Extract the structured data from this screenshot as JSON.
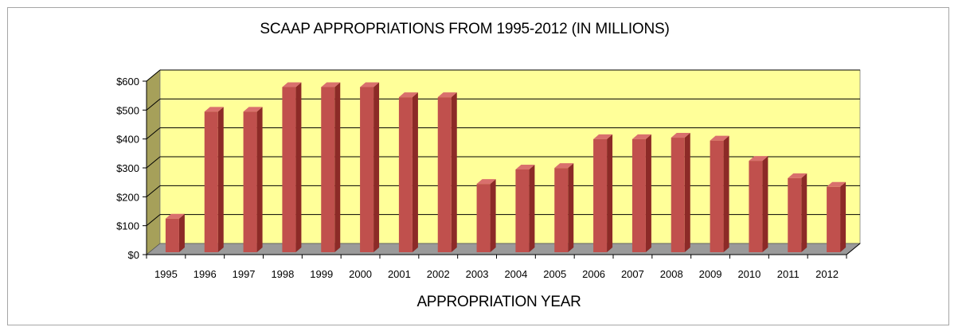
{
  "chart_data": {
    "type": "bar",
    "title": "SCAAP APPROPRIATIONS FROM 1995-2012 (IN MILLIONS)",
    "xlabel": "APPROPRIATION YEAR",
    "ylabel": "",
    "categories": [
      "1995",
      "1996",
      "1997",
      "1998",
      "1999",
      "2000",
      "2001",
      "2002",
      "2003",
      "2004",
      "2005",
      "2006",
      "2007",
      "2008",
      "2009",
      "2010",
      "2011",
      "2012"
    ],
    "values": [
      130,
      500,
      500,
      585,
      585,
      585,
      550,
      550,
      250,
      300,
      305,
      405,
      405,
      410,
      400,
      330,
      270,
      240
    ],
    "ylim": [
      0,
      600
    ],
    "yticks": [
      0,
      100,
      200,
      300,
      400,
      500,
      600
    ],
    "ytick_labels": [
      "$0",
      "$100",
      "$200",
      "$300",
      "$400",
      "$500",
      "$600"
    ],
    "grid": true,
    "style": "3d-column",
    "colors": {
      "bar_front": "#c0504d",
      "bar_side": "#8c2a27",
      "bar_top": "#d9706d",
      "back_wall": "#ffff99",
      "side_wall": "#a6a05a",
      "floor": "#9a9a9a",
      "gridline": "#000000"
    }
  }
}
